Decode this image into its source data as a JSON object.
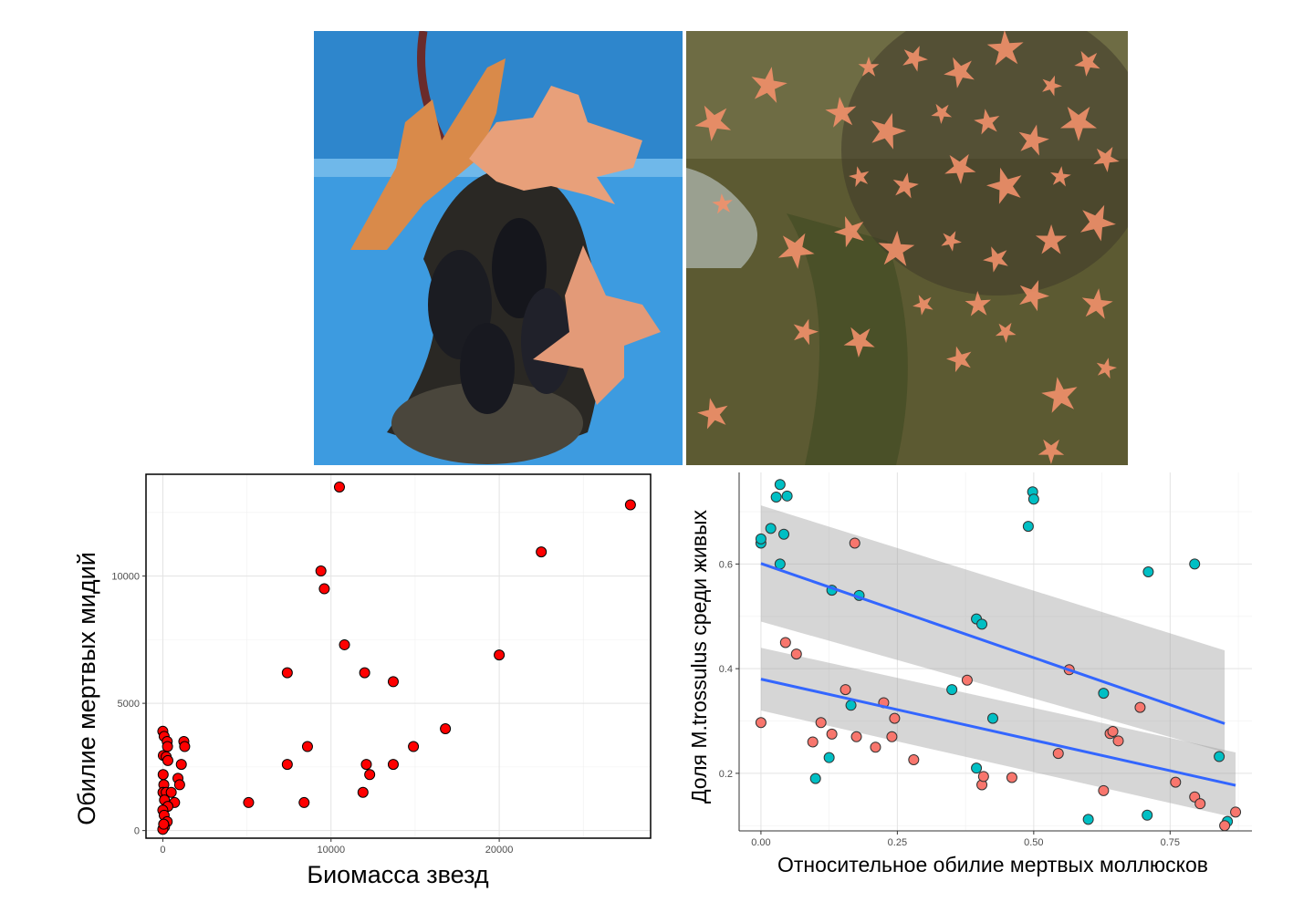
{
  "photos": [
    {
      "icon": "starfish-on-mussels-photo"
    },
    {
      "icon": "starfish-in-tank-photo"
    }
  ],
  "chart_data": [
    {
      "type": "scatter",
      "xlabel": "Биомасса звезд",
      "ylabel": "Обилие мертвых мидий",
      "xlim": [
        -1000,
        29000
      ],
      "ylim": [
        -300,
        14000
      ],
      "xticks": [
        0,
        10000,
        20000
      ],
      "yticks": [
        0,
        5000,
        10000
      ],
      "tick_labels_x": [
        "0",
        "10000",
        "20000"
      ],
      "tick_labels_y": [
        "0",
        "5000",
        "10000"
      ],
      "grid": true,
      "border": true,
      "color": "#ff0000",
      "points": [
        [
          0,
          3900
        ],
        [
          80,
          3700
        ],
        [
          260,
          3500
        ],
        [
          280,
          3300
        ],
        [
          30,
          2950
        ],
        [
          200,
          2900
        ],
        [
          300,
          2750
        ],
        [
          1250,
          3500
        ],
        [
          1300,
          3300
        ],
        [
          1100,
          2600
        ],
        [
          900,
          2050
        ],
        [
          1000,
          1800
        ],
        [
          20,
          2200
        ],
        [
          60,
          1800
        ],
        [
          10,
          1500
        ],
        [
          200,
          1500
        ],
        [
          500,
          1500
        ],
        [
          700,
          1100
        ],
        [
          100,
          1200
        ],
        [
          300,
          950
        ],
        [
          0,
          800
        ],
        [
          80,
          600
        ],
        [
          260,
          350
        ],
        [
          100,
          150
        ],
        [
          0,
          50
        ],
        [
          50,
          250
        ],
        [
          5100,
          1100
        ],
        [
          7400,
          6200
        ],
        [
          7400,
          2600
        ],
        [
          8400,
          1100
        ],
        [
          8600,
          3300
        ],
        [
          9400,
          10200
        ],
        [
          9600,
          9500
        ],
        [
          10500,
          13500
        ],
        [
          10800,
          7300
        ],
        [
          12000,
          6200
        ],
        [
          11900,
          1500
        ],
        [
          12100,
          2600
        ],
        [
          12300,
          2200
        ],
        [
          13700,
          5850
        ],
        [
          13700,
          2600
        ],
        [
          14900,
          3300
        ],
        [
          16800,
          4000
        ],
        [
          20000,
          6900
        ],
        [
          22500,
          10950
        ],
        [
          27800,
          12800
        ]
      ]
    },
    {
      "type": "scatter",
      "xlabel": "Относительное обилие мертвых моллюсков",
      "ylabel": "Доля M.trossulus среди живых",
      "xlim": [
        -0.04,
        0.9
      ],
      "ylim": [
        0.09,
        0.775
      ],
      "xticks": [
        0,
        0.25,
        0.5,
        0.75
      ],
      "yticks": [
        0.2,
        0.4,
        0.6
      ],
      "tick_labels_x": [
        "0.00",
        "0.25",
        "0.50",
        "0.75"
      ],
      "tick_labels_y": [
        "0.2",
        "0.4",
        "0.6"
      ],
      "grid": true,
      "border": false,
      "series": [
        {
          "color": "#00bfc4",
          "points": [
            [
              0,
              0.64
            ],
            [
              0,
              0.648
            ],
            [
              0.018,
              0.668
            ],
            [
              0.035,
              0.752
            ],
            [
              0.028,
              0.728
            ],
            [
              0.048,
              0.73
            ],
            [
              0.042,
              0.657
            ],
            [
              0.035,
              0.6
            ],
            [
              0.13,
              0.55
            ],
            [
              0.18,
              0.54
            ],
            [
              0.165,
              0.33
            ],
            [
              0.125,
              0.23
            ],
            [
              0.1,
              0.19
            ],
            [
              0.35,
              0.36
            ],
            [
              0.395,
              0.495
            ],
            [
              0.405,
              0.485
            ],
            [
              0.425,
              0.305
            ],
            [
              0.395,
              0.21
            ],
            [
              0.49,
              0.672
            ],
            [
              0.498,
              0.738
            ],
            [
              0.5,
              0.724
            ],
            [
              0.628,
              0.353
            ],
            [
              0.6,
              0.112
            ],
            [
              0.71,
              0.585
            ],
            [
              0.795,
              0.6
            ],
            [
              0.708,
              0.12
            ],
            [
              0.84,
              0.232
            ],
            [
              0.855,
              0.108
            ]
          ],
          "fit": {
            "x": [
              0,
              0.85
            ],
            "y": [
              0.601,
              0.295
            ],
            "ci_lo": [
              0.49,
              0.24
            ],
            "ci_hi": [
              0.712,
              0.435
            ]
          }
        },
        {
          "color": "#f8766d",
          "points": [
            [
              0,
              0.297
            ],
            [
              0.045,
              0.45
            ],
            [
              0.065,
              0.428
            ],
            [
              0.095,
              0.26
            ],
            [
              0.11,
              0.297
            ],
            [
              0.13,
              0.275
            ],
            [
              0.155,
              0.36
            ],
            [
              0.172,
              0.64
            ],
            [
              0.175,
              0.27
            ],
            [
              0.21,
              0.25
            ],
            [
              0.225,
              0.335
            ],
            [
              0.24,
              0.27
            ],
            [
              0.245,
              0.305
            ],
            [
              0.28,
              0.226
            ],
            [
              0.378,
              0.378
            ],
            [
              0.405,
              0.178
            ],
            [
              0.408,
              0.194
            ],
            [
              0.46,
              0.192
            ],
            [
              0.545,
              0.238
            ],
            [
              0.565,
              0.398
            ],
            [
              0.628,
              0.167
            ],
            [
              0.64,
              0.276
            ],
            [
              0.645,
              0.28
            ],
            [
              0.655,
              0.262
            ],
            [
              0.695,
              0.326
            ],
            [
              0.76,
              0.183
            ],
            [
              0.795,
              0.155
            ],
            [
              0.805,
              0.142
            ],
            [
              0.85,
              0.1
            ],
            [
              0.87,
              0.126
            ]
          ],
          "fit": {
            "x": [
              0,
              0.87
            ],
            "y": [
              0.38,
              0.177
            ],
            "ci_lo": [
              0.32,
              0.115
            ],
            "ci_hi": [
              0.44,
              0.24
            ]
          }
        }
      ],
      "fit_color": "#3366ff",
      "ci_color": "#999999"
    }
  ]
}
